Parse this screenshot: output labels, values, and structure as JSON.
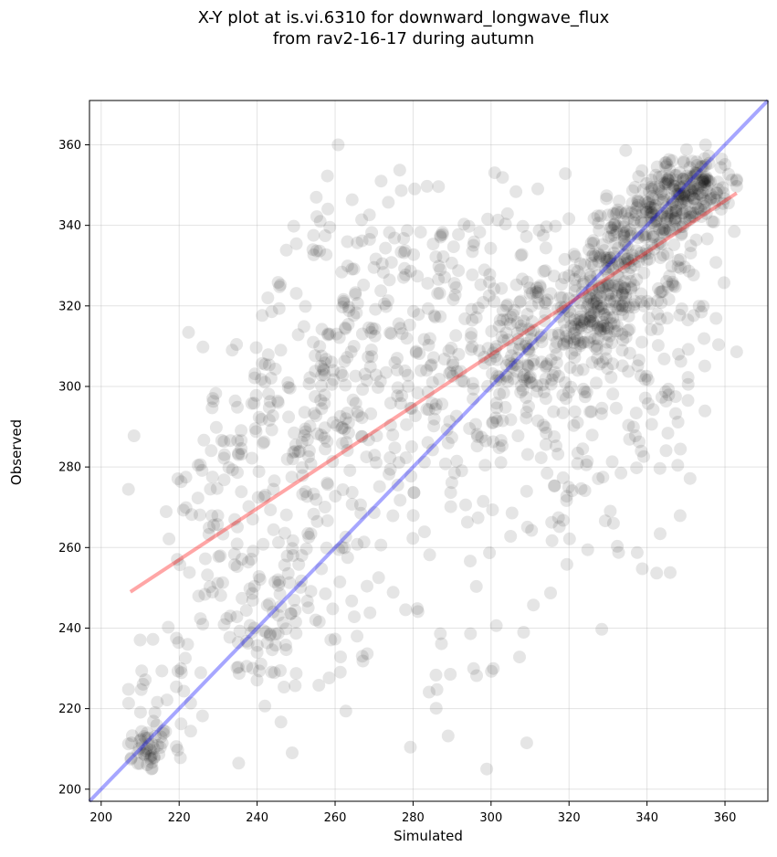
{
  "chart_data": {
    "type": "scatter",
    "title_lines": [
      "X-Y plot at is.vi.6310 for downward_longwave_flux",
      "from rav2-16-17 during autumn"
    ],
    "xlabel": "Simulated",
    "ylabel": "Observed",
    "xlim": [
      197,
      371
    ],
    "ylim": [
      197,
      371
    ],
    "xticks": [
      "200",
      "220",
      "240",
      "260",
      "280",
      "300",
      "320",
      "340",
      "360"
    ],
    "yticks": [
      "200",
      "220",
      "240",
      "260",
      "280",
      "300",
      "320",
      "340",
      "360"
    ],
    "grid": true,
    "point_color": "#000000",
    "point_alpha": 0.1,
    "one_to_one_line": {
      "color": "#0000ff",
      "alpha": 0.35,
      "x": [
        197,
        371
      ],
      "y": [
        197,
        371
      ]
    },
    "regression_line": {
      "color": "#ff0000",
      "alpha": 0.35,
      "x": [
        207.5,
        363
      ],
      "y": [
        249,
        348
      ]
    },
    "clusters": [
      {
        "cx": 212,
        "cy": 210,
        "sx": 3,
        "sy": 3,
        "n": 45
      },
      {
        "cx": 218,
        "cy": 225,
        "sx": 6,
        "sy": 9,
        "n": 30
      },
      {
        "cx": 229,
        "cy": 265,
        "sx": 8,
        "sy": 20,
        "n": 70
      },
      {
        "cx": 243,
        "cy": 240,
        "sx": 5,
        "sy": 8,
        "n": 50
      },
      {
        "cx": 242,
        "cy": 292,
        "sx": 9,
        "sy": 18,
        "n": 80
      },
      {
        "cx": 255,
        "cy": 260,
        "sx": 8,
        "sy": 22,
        "n": 90
      },
      {
        "cx": 262,
        "cy": 310,
        "sx": 10,
        "sy": 20,
        "n": 110
      },
      {
        "cx": 278,
        "cy": 305,
        "sx": 12,
        "sy": 22,
        "n": 140
      },
      {
        "cx": 292,
        "cy": 305,
        "sx": 12,
        "sy": 22,
        "n": 110
      },
      {
        "cx": 307,
        "cy": 305,
        "sx": 6,
        "sy": 8,
        "n": 80
      },
      {
        "cx": 312,
        "cy": 320,
        "sx": 8,
        "sy": 18,
        "n": 80
      },
      {
        "cx": 318,
        "cy": 290,
        "sx": 10,
        "sy": 20,
        "n": 70
      },
      {
        "cx": 324,
        "cy": 315,
        "sx": 5,
        "sy": 5,
        "n": 90
      },
      {
        "cx": 332,
        "cy": 330,
        "sx": 4,
        "sy": 8,
        "n": 140
      },
      {
        "cx": 340,
        "cy": 300,
        "sx": 9,
        "sy": 20,
        "n": 80
      },
      {
        "cx": 344,
        "cy": 343,
        "sx": 5,
        "sy": 5,
        "n": 130
      },
      {
        "cx": 352,
        "cy": 350,
        "sx": 5,
        "sy": 4,
        "n": 140
      },
      {
        "cx": 340,
        "cy": 325,
        "sx": 10,
        "sy": 12,
        "n": 100
      },
      {
        "cx": 290,
        "cy": 240,
        "sx": 15,
        "sy": 15,
        "n": 30
      }
    ]
  }
}
